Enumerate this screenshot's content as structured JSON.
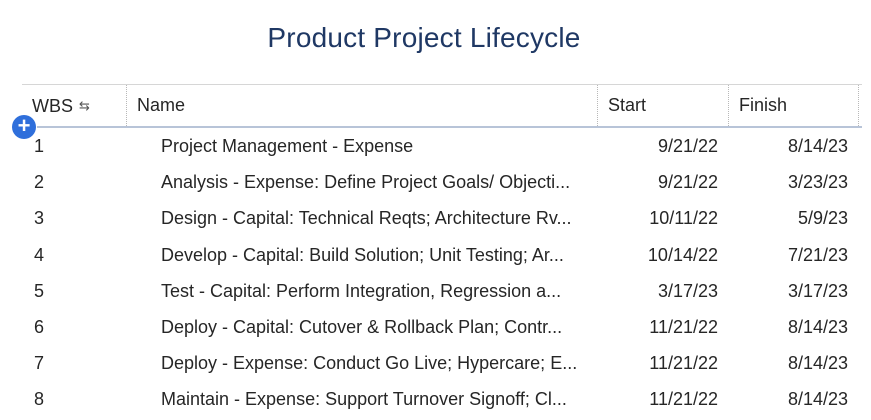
{
  "title": "Product Project Lifecycle",
  "table": {
    "headers": {
      "wbs": "WBS",
      "name": "Name",
      "start": "Start",
      "finish": "Finish"
    },
    "icons": {
      "sort": "sort-icon",
      "add": "add-row-icon"
    },
    "add_label": "+",
    "sort_glyph": "⇆",
    "rows": [
      {
        "wbs": "1",
        "name": "Project Management - Expense",
        "start": "9/21/22",
        "finish": "8/14/23"
      },
      {
        "wbs": "2",
        "name": "Analysis - Expense: Define Project Goals/ Objecti...",
        "start": "9/21/22",
        "finish": "3/23/23"
      },
      {
        "wbs": "3",
        "name": "Design - Capital: Technical Reqts; Architecture Rv...",
        "start": "10/11/22",
        "finish": "5/9/23"
      },
      {
        "wbs": "4",
        "name": "Develop - Capital: Build Solution; Unit Testing; Ar...",
        "start": "10/14/22",
        "finish": "7/21/23"
      },
      {
        "wbs": "5",
        "name": "Test - Capital: Perform Integration, Regression a...",
        "start": "3/17/23",
        "finish": "3/17/23"
      },
      {
        "wbs": "6",
        "name": "Deploy - Capital: Cutover & Rollback Plan; Contr...",
        "start": "11/21/22",
        "finish": "8/14/23"
      },
      {
        "wbs": "7",
        "name": "Deploy - Expense: Conduct Go Live; Hypercare; E...",
        "start": "11/21/22",
        "finish": "8/14/23"
      },
      {
        "wbs": "8",
        "name": "Maintain - Expense: Support Turnover Signoff; Cl...",
        "start": "11/21/22",
        "finish": "8/14/23"
      }
    ]
  },
  "colors": {
    "title": "#1f3864",
    "add_button": "#2f6fdb",
    "header_underline": "#b8c4d8"
  }
}
